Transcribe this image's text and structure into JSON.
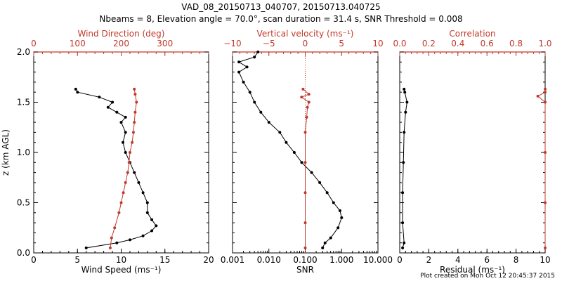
{
  "title": "VAD_08_20150713_040707, 20150713.040725",
  "subtitle": "Nbeams = 8, Elevation angle = 70.0°, scan duration = 31.4 s, SNR Threshold = 0.008",
  "footer": "Plot created on Mon Oct 12 20:45:37 2015",
  "colors": {
    "primary": "#000000",
    "secondary": "#c0392b"
  },
  "chart_data": [
    {
      "type": "line",
      "ylabel": "z (km AGL)",
      "ylim": [
        0,
        2.0
      ],
      "yticks": [
        "0.0",
        "0.5",
        "1.0",
        "1.5",
        "2.0"
      ],
      "bottom_axis": {
        "label": "Wind Speed (ms⁻¹)",
        "lim": [
          0,
          20
        ],
        "ticks": [
          "0",
          "5",
          "10",
          "15",
          "20"
        ]
      },
      "top_axis": {
        "label": "Wind Direction (deg)",
        "lim": [
          0,
          400
        ],
        "ticks": [
          "0",
          "100",
          "200",
          "300"
        ]
      },
      "series": [
        {
          "axis": "bottom",
          "color": "#000000",
          "points": [
            [
              6.0,
              0.05
            ],
            [
              9.5,
              0.1
            ],
            [
              11,
              0.13
            ],
            [
              12.5,
              0.17
            ],
            [
              13.5,
              0.22
            ],
            [
              14,
              0.27
            ],
            [
              13.5,
              0.33
            ],
            [
              13,
              0.4
            ],
            [
              13,
              0.5
            ],
            [
              12.5,
              0.6
            ],
            [
              12,
              0.7
            ],
            [
              11.5,
              0.8
            ],
            [
              11,
              0.9
            ],
            [
              10.5,
              1.0
            ],
            [
              10.2,
              1.1
            ],
            [
              10.5,
              1.2
            ],
            [
              10,
              1.3
            ],
            [
              10.5,
              1.35
            ],
            [
              9.5,
              1.4
            ],
            [
              8.5,
              1.45
            ],
            [
              9,
              1.5
            ],
            [
              7.5,
              1.55
            ],
            [
              5,
              1.6
            ],
            [
              4.8,
              1.63
            ]
          ]
        },
        {
          "axis": "top",
          "color": "#c0392b",
          "points": [
            [
              175,
              0.05
            ],
            [
              178,
              0.15
            ],
            [
              185,
              0.25
            ],
            [
              195,
              0.4
            ],
            [
              200,
              0.5
            ],
            [
              205,
              0.6
            ],
            [
              210,
              0.7
            ],
            [
              215,
              0.8
            ],
            [
              218,
              0.9
            ],
            [
              220,
              1.0
            ],
            [
              225,
              1.1
            ],
            [
              228,
              1.2
            ],
            [
              230,
              1.3
            ],
            [
              232,
              1.4
            ],
            [
              235,
              1.5
            ],
            [
              232,
              1.58
            ],
            [
              230,
              1.63
            ]
          ]
        }
      ]
    },
    {
      "type": "line",
      "ylim": [
        0,
        2.0
      ],
      "bottom_axis": {
        "label": "SNR",
        "scale": "log",
        "lim": [
          0.001,
          10
        ],
        "ticks": [
          "0.001",
          "0.010",
          "0.100",
          "1.000",
          "10.000"
        ]
      },
      "top_axis": {
        "label": "Vertical velocity (ms⁻¹)",
        "lim": [
          -10,
          10
        ],
        "ticks": [
          "−10",
          "−5",
          "0",
          "5",
          "10"
        ]
      },
      "series": [
        {
          "axis": "bottom",
          "color": "#000000",
          "points": [
            [
              0.3,
              0.05
            ],
            [
              0.35,
              0.1
            ],
            [
              0.5,
              0.15
            ],
            [
              0.8,
              0.25
            ],
            [
              1.0,
              0.35
            ],
            [
              0.9,
              0.42
            ],
            [
              0.6,
              0.5
            ],
            [
              0.4,
              0.6
            ],
            [
              0.25,
              0.7
            ],
            [
              0.15,
              0.8
            ],
            [
              0.08,
              0.9
            ],
            [
              0.05,
              1.0
            ],
            [
              0.03,
              1.1
            ],
            [
              0.02,
              1.2
            ],
            [
              0.01,
              1.3
            ],
            [
              0.006,
              1.4
            ],
            [
              0.004,
              1.5
            ],
            [
              0.003,
              1.6
            ],
            [
              0.002,
              1.7
            ],
            [
              0.0015,
              1.8
            ],
            [
              0.0025,
              1.85
            ],
            [
              0.0015,
              1.9
            ],
            [
              0.004,
              1.95
            ],
            [
              0.005,
              2.0
            ]
          ]
        },
        {
          "axis": "top",
          "color": "#c0392b",
          "points": [
            [
              0,
              0.05
            ],
            [
              0,
              0.3
            ],
            [
              0,
              0.6
            ],
            [
              0,
              0.9
            ],
            [
              0,
              1.2
            ],
            [
              0.2,
              1.35
            ],
            [
              0.3,
              1.45
            ],
            [
              0.5,
              1.5
            ],
            [
              -0.5,
              1.55
            ],
            [
              0.5,
              1.58
            ],
            [
              -0.3,
              1.63
            ]
          ]
        }
      ]
    },
    {
      "type": "line",
      "ylim": [
        0,
        2.0
      ],
      "bottom_axis": {
        "label": "Residual (ms⁻¹)",
        "lim": [
          0,
          10
        ],
        "ticks": [
          "0",
          "2",
          "4",
          "6",
          "8",
          "10"
        ]
      },
      "top_axis": {
        "label": "Correlation",
        "lim": [
          0,
          1.0
        ],
        "ticks": [
          "0.0",
          "0.2",
          "0.4",
          "0.6",
          "0.8",
          "1.0"
        ]
      },
      "series": [
        {
          "axis": "bottom",
          "color": "#000000",
          "points": [
            [
              0.2,
              0.05
            ],
            [
              0.3,
              0.1
            ],
            [
              0.2,
              0.3
            ],
            [
              0.2,
              0.6
            ],
            [
              0.25,
              0.9
            ],
            [
              0.3,
              1.2
            ],
            [
              0.4,
              1.4
            ],
            [
              0.5,
              1.5
            ],
            [
              0.35,
              1.6
            ],
            [
              0.3,
              1.63
            ]
          ]
        },
        {
          "axis": "top",
          "color": "#c0392b",
          "points": [
            [
              1.0,
              0.05
            ],
            [
              1.0,
              0.5
            ],
            [
              1.0,
              1.0
            ],
            [
              1.0,
              1.5
            ],
            [
              0.95,
              1.56
            ],
            [
              1.0,
              1.6
            ],
            [
              1.0,
              1.63
            ]
          ]
        }
      ]
    }
  ]
}
